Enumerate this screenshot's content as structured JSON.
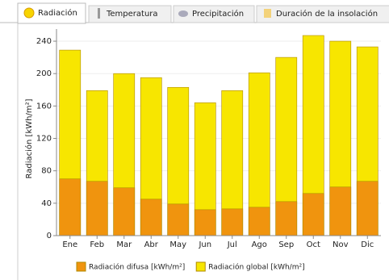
{
  "tabs": [
    {
      "label": "Radiación"
    },
    {
      "label": "Temperatura"
    },
    {
      "label": "Precipitación"
    },
    {
      "label": "Duración de la insolación"
    }
  ],
  "chart_data": {
    "type": "bar",
    "y_label": "Radiación [kWh/m²]",
    "categories": [
      "Ene",
      "Feb",
      "Mar",
      "Abr",
      "May",
      "Jun",
      "Jul",
      "Ago",
      "Sep",
      "Oct",
      "Nov",
      "Dic"
    ],
    "series": [
      {
        "name": "Radiación global [kWh/m²]",
        "color": "#f7e600",
        "values": [
          229,
          179,
          200,
          195,
          183,
          164,
          179,
          201,
          220,
          247,
          240,
          233
        ]
      },
      {
        "name": "Radiación difusa [kWh/m²]",
        "color": "#f0940e",
        "values": [
          70,
          67,
          59,
          45,
          39,
          32,
          33,
          35,
          42,
          52,
          60,
          67
        ]
      }
    ],
    "legend_order": [
      1,
      0
    ],
    "ylim": [
      0,
      250
    ],
    "yticks": [
      0,
      40,
      80,
      120,
      160,
      200,
      240
    ],
    "grid": true
  }
}
